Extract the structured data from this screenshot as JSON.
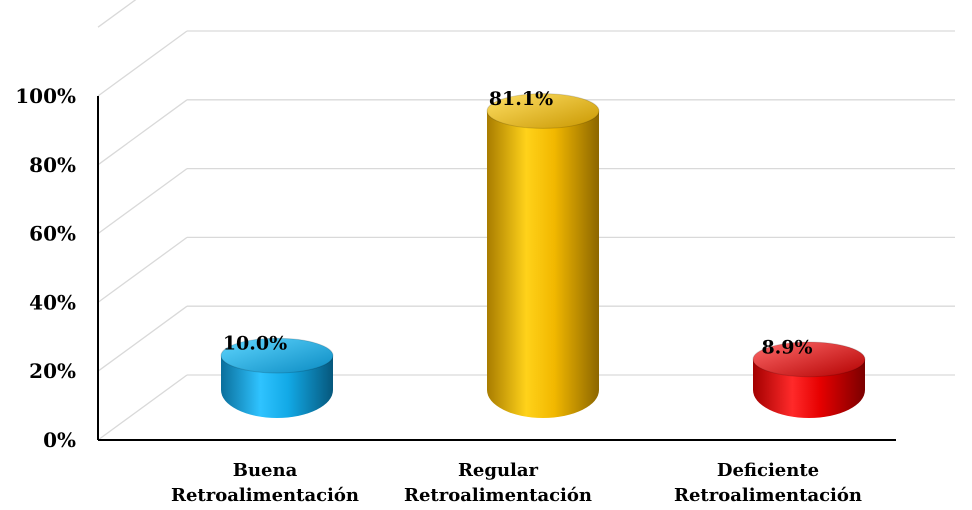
{
  "chart_data": {
    "type": "bar",
    "categories": [
      [
        "Buena",
        "Retroalimentación"
      ],
      [
        "Regular",
        "Retroalimentación"
      ],
      [
        "Deficiente",
        "Retroalimentación"
      ]
    ],
    "values": [
      10.0,
      81.1,
      8.9
    ],
    "data_labels": [
      "10.0%",
      "81.1%",
      "8.9%"
    ],
    "colors": [
      "#12a9e6",
      "#f2b800",
      "#e60000"
    ],
    "ylim": [
      0,
      100
    ],
    "yticks": [
      0,
      20,
      40,
      60,
      80,
      100
    ],
    "ytick_labels": [
      "0%",
      "20%",
      "40%",
      "60%",
      "80%",
      "100%"
    ],
    "grid": true,
    "style": "3d-cylinder"
  }
}
